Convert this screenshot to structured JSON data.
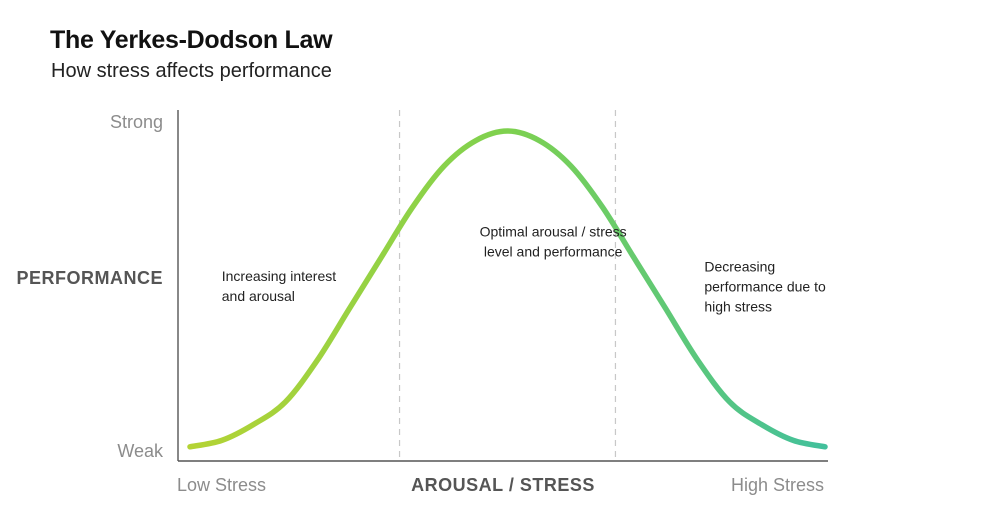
{
  "header": {
    "title": "The Yerkes-Dodson Law",
    "subtitle": "How stress affects performance"
  },
  "colors": {
    "curve_start": "#b4d334",
    "curve_mid": "#7ed14f",
    "curve_end": "#42c09c",
    "axis": "#555555",
    "divider": "#c8c8c8",
    "tick_label": "#8c8c8c",
    "axis_title": "#555555",
    "annotation": "#222222"
  },
  "chart_data": {
    "type": "line",
    "title": "The Yerkes-Dodson Law",
    "subtitle": "How stress affects performance",
    "xlabel": "AROUSAL / STRESS",
    "ylabel": "PERFORMANCE",
    "x_tick_labels": [
      "Low Stress",
      "High Stress"
    ],
    "y_tick_labels": [
      "Weak",
      "Strong"
    ],
    "xlim": [
      0,
      1
    ],
    "ylim": [
      0,
      1
    ],
    "grid": false,
    "series": [
      {
        "x": [
          0.0,
          0.05,
          0.1,
          0.15,
          0.2,
          0.25,
          0.3,
          0.35,
          0.4,
          0.45,
          0.5,
          0.55,
          0.6,
          0.65,
          0.7,
          0.75,
          0.8,
          0.85,
          0.9,
          0.95,
          1.0
        ],
        "y": [
          0.01,
          0.03,
          0.08,
          0.15,
          0.28,
          0.44,
          0.6,
          0.76,
          0.89,
          0.97,
          1.0,
          0.97,
          0.89,
          0.76,
          0.6,
          0.44,
          0.28,
          0.15,
          0.08,
          0.03,
          0.01
        ]
      }
    ],
    "dividers_x": [
      0.33,
      0.67
    ],
    "annotations": [
      {
        "lines": [
          "Increasing interest",
          "and arousal"
        ],
        "x": 0.05,
        "y": 0.53
      },
      {
        "lines": [
          "Optimal arousal / stress",
          "level and performance"
        ],
        "x": 0.375,
        "y": 0.67
      },
      {
        "lines": [
          "Decreasing",
          "performance due to",
          "high stress"
        ],
        "x": 0.81,
        "y": 0.56
      }
    ]
  }
}
